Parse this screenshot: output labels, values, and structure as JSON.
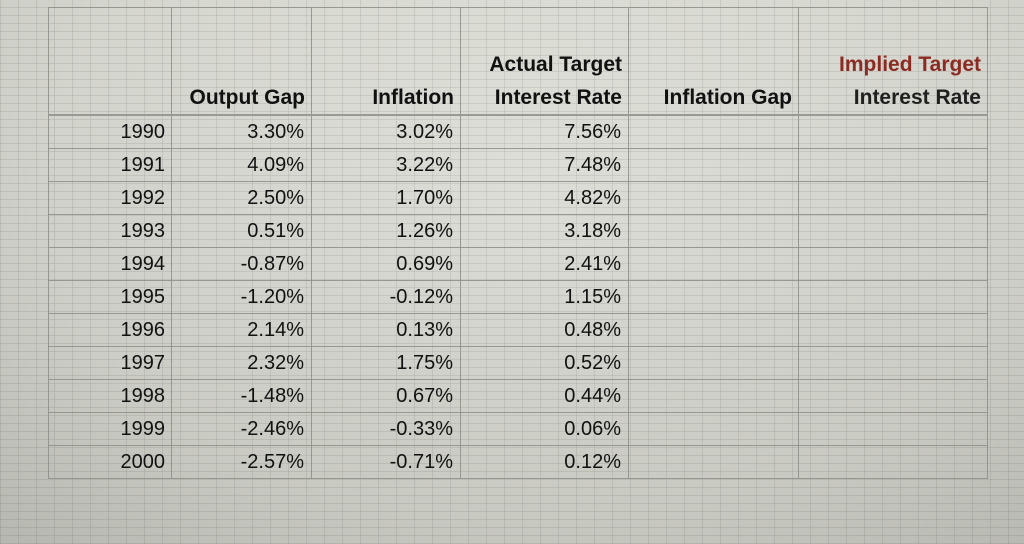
{
  "spreadsheet": {
    "headers": {
      "year": "",
      "output_gap": "Output Gap",
      "inflation": "Inflation",
      "actual_target_line1": "Actual Target",
      "actual_target_line2": "Interest Rate",
      "inflation_gap": "Inflation Gap",
      "implied_target_line1": "Implied Target",
      "implied_target_line2": "Interest Rate"
    },
    "rows": [
      {
        "year": "1990",
        "output_gap": "3.30%",
        "inflation": "3.02%",
        "actual_target": "7.56%",
        "inflation_gap": "",
        "implied_target": ""
      },
      {
        "year": "1991",
        "output_gap": "4.09%",
        "inflation": "3.22%",
        "actual_target": "7.48%",
        "inflation_gap": "",
        "implied_target": ""
      },
      {
        "year": "1992",
        "output_gap": "2.50%",
        "inflation": "1.70%",
        "actual_target": "4.82%",
        "inflation_gap": "",
        "implied_target": ""
      },
      {
        "year": "1993",
        "output_gap": "0.51%",
        "inflation": "1.26%",
        "actual_target": "3.18%",
        "inflation_gap": "",
        "implied_target": ""
      },
      {
        "year": "1994",
        "output_gap": "-0.87%",
        "inflation": "0.69%",
        "actual_target": "2.41%",
        "inflation_gap": "",
        "implied_target": ""
      },
      {
        "year": "1995",
        "output_gap": "-1.20%",
        "inflation": "-0.12%",
        "actual_target": "1.15%",
        "inflation_gap": "",
        "implied_target": ""
      },
      {
        "year": "1996",
        "output_gap": "2.14%",
        "inflation": "0.13%",
        "actual_target": "0.48%",
        "inflation_gap": "",
        "implied_target": ""
      },
      {
        "year": "1997",
        "output_gap": "2.32%",
        "inflation": "1.75%",
        "actual_target": "0.52%",
        "inflation_gap": "",
        "implied_target": ""
      },
      {
        "year": "1998",
        "output_gap": "-1.48%",
        "inflation": "0.67%",
        "actual_target": "0.44%",
        "inflation_gap": "",
        "implied_target": ""
      },
      {
        "year": "1999",
        "output_gap": "-2.46%",
        "inflation": "-0.33%",
        "actual_target": "0.06%",
        "inflation_gap": "",
        "implied_target": ""
      },
      {
        "year": "2000",
        "output_gap": "-2.57%",
        "inflation": "-0.71%",
        "actual_target": "0.12%",
        "inflation_gap": "",
        "implied_target": ""
      }
    ]
  },
  "colors": {
    "cell_background": "#dcddd5",
    "grid_line": "#9a9a94",
    "header_text": "#111111",
    "implied_header_top": "#8b2b22"
  }
}
